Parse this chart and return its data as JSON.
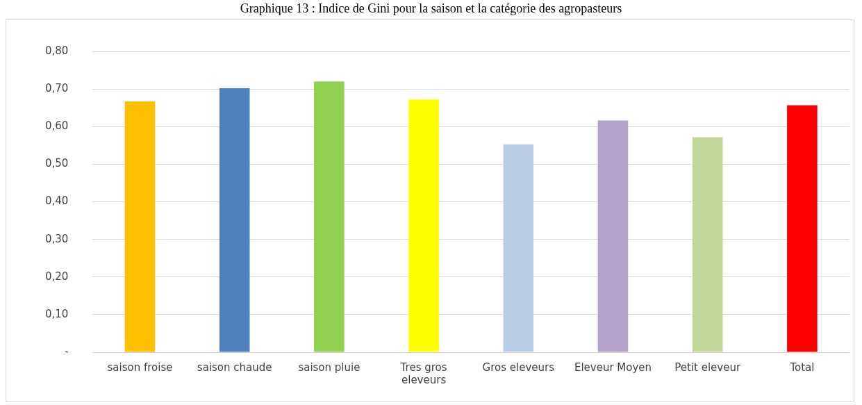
{
  "chart_data": {
    "type": "bar",
    "title": "Graphique 13 : Indice de Gini pour la saison et la catégorie des agropasteurs",
    "categories": [
      "saison froise",
      "saison chaude",
      "saison pluie",
      "Tres gros eleveurs",
      "Gros eleveurs",
      "Eleveur Moyen",
      "Petit eleveur",
      "Total"
    ],
    "values": [
      0.667,
      0.702,
      0.72,
      0.672,
      0.553,
      0.616,
      0.572,
      0.657
    ],
    "colors": [
      "#ffc000",
      "#4f81bd",
      "#92d050",
      "#ffff00",
      "#b9cde5",
      "#b3a2c7",
      "#c4d79b",
      "#ff0000"
    ],
    "ylim": [
      0,
      0.8
    ],
    "yticks": [
      {
        "value": 0,
        "label": "-"
      },
      {
        "value": 0.1,
        "label": "0,10"
      },
      {
        "value": 0.2,
        "label": "0,20"
      },
      {
        "value": 0.3,
        "label": "0,30"
      },
      {
        "value": 0.4,
        "label": "0,40"
      },
      {
        "value": 0.5,
        "label": "0,50"
      },
      {
        "value": 0.6,
        "label": "0,60"
      },
      {
        "value": 0.7,
        "label": "0,70"
      },
      {
        "value": 0.8,
        "label": "0,80"
      }
    ],
    "grid": "y"
  }
}
